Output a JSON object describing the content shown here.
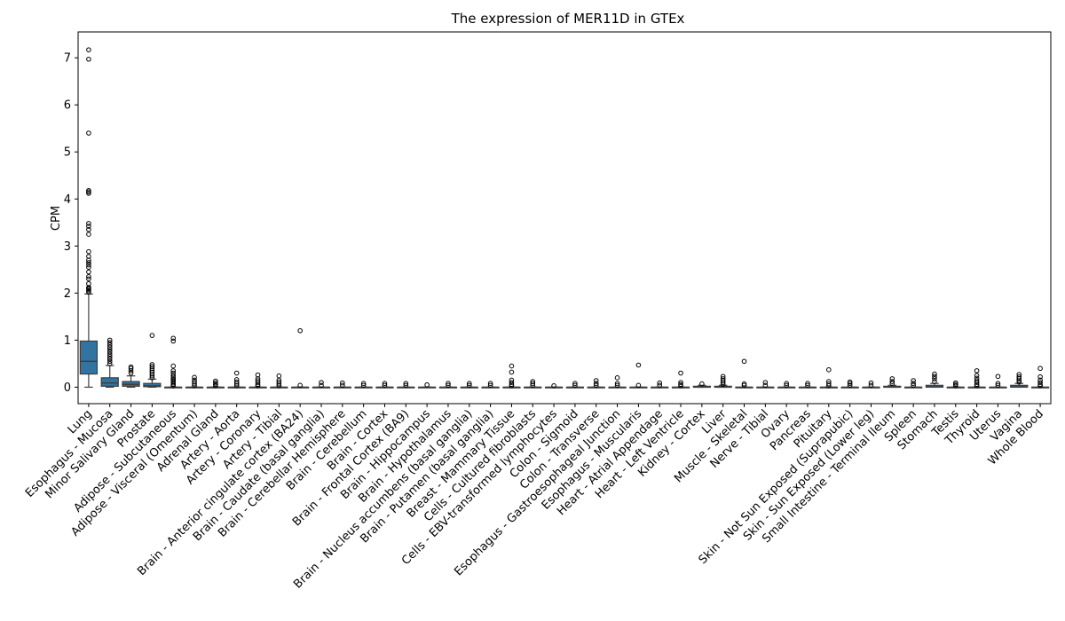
{
  "chart_data": {
    "type": "box",
    "title": "The expression of MER11D in GTEx",
    "xlabel": "",
    "ylabel": "CPM",
    "ylim": [
      -0.35,
      7.55
    ],
    "yticks": [
      0,
      1,
      2,
      3,
      4,
      5,
      6,
      7
    ],
    "grid": false,
    "box_color": "#3274a1",
    "categories": [
      "Lung",
      "Esophagus - Mucosa",
      "Minor Salivary Gland",
      "Prostate",
      "Adipose - Subcutaneous",
      "Adipose - Visceral (Omentum)",
      "Adrenal Gland",
      "Artery - Aorta",
      "Artery - Coronary",
      "Artery - Tibial",
      "Brain - Anterior cingulate cortex (BA24)",
      "Brain - Caudate (basal ganglia)",
      "Brain - Cerebellar Hemisphere",
      "Brain - Cerebellum",
      "Brain - Cortex",
      "Brain - Frontal Cortex (BA9)",
      "Brain - Hippocampus",
      "Brain - Hypothalamus",
      "Brain - Nucleus accumbens (basal ganglia)",
      "Brain - Putamen (basal ganglia)",
      "Breast - Mammary Tissue",
      "Cells - Cultured fibroblasts",
      "Cells - EBV-transformed lymphocytes",
      "Colon - Sigmoid",
      "Colon - Transverse",
      "Esophagus - Gastroesophageal Junction",
      "Esophagus - Muscularis",
      "Heart - Atrial Appendage",
      "Heart - Left Ventricle",
      "Kidney - Cortex",
      "Liver",
      "Muscle - Skeletal",
      "Nerve - Tibial",
      "Ovary",
      "Pancreas",
      "Pituitary",
      "Skin - Not Sun Exposed (Suprapubic)",
      "Skin - Sun Exposed (Lower leg)",
      "Small Intestine - Terminal Ileum",
      "Spleen",
      "Stomach",
      "Testis",
      "Thyroid",
      "Uterus",
      "Vagina",
      "Whole Blood"
    ],
    "boxes": [
      {
        "min": 0,
        "q1": 0.28,
        "median": 0.55,
        "q3": 0.98,
        "max": 1.98,
        "outliers": [
          2.02,
          2.05,
          2.08,
          2.1,
          2.12,
          2.2,
          2.3,
          2.35,
          2.45,
          2.55,
          2.6,
          2.65,
          2.7,
          2.78,
          2.88,
          3.25,
          3.35,
          3.42,
          3.48,
          4.12,
          4.15,
          4.18,
          5.4,
          6.97,
          7.17
        ]
      },
      {
        "min": 0,
        "q1": 0.02,
        "median": 0.09,
        "q3": 0.2,
        "max": 0.46,
        "outliers": [
          0.5,
          0.55,
          0.6,
          0.65,
          0.7,
          0.75,
          0.8,
          0.85,
          0.9,
          0.95,
          1.0
        ]
      },
      {
        "min": 0,
        "q1": 0.02,
        "median": 0.06,
        "q3": 0.12,
        "max": 0.24,
        "outliers": [
          0.3,
          0.35,
          0.4,
          0.43
        ]
      },
      {
        "min": 0,
        "q1": 0.01,
        "median": 0.03,
        "q3": 0.08,
        "max": 0.17,
        "outliers": [
          0.2,
          0.24,
          0.28,
          0.32,
          0.36,
          0.4,
          0.44,
          0.48,
          1.1
        ]
      },
      {
        "min": 0,
        "q1": 0,
        "median": 0,
        "q3": 0,
        "max": 0,
        "outliers": [
          0.03,
          0.06,
          0.09,
          0.12,
          0.15,
          0.18,
          0.21,
          0.25,
          0.3,
          0.35,
          0.45,
          0.98,
          1.04
        ]
      },
      {
        "min": 0,
        "q1": 0,
        "median": 0,
        "q3": 0,
        "max": 0,
        "outliers": [
          0.03,
          0.07,
          0.11,
          0.15,
          0.21
        ]
      },
      {
        "min": 0,
        "q1": 0,
        "median": 0,
        "q3": 0,
        "max": 0,
        "outliers": [
          0.03,
          0.06,
          0.09,
          0.13
        ]
      },
      {
        "min": 0,
        "q1": 0,
        "median": 0,
        "q3": 0,
        "max": 0,
        "outliers": [
          0.03,
          0.07,
          0.11,
          0.16,
          0.3
        ]
      },
      {
        "min": 0,
        "q1": 0,
        "median": 0,
        "q3": 0,
        "max": 0,
        "outliers": [
          0.03,
          0.06,
          0.1,
          0.14,
          0.18,
          0.26
        ]
      },
      {
        "min": 0,
        "q1": 0,
        "median": 0,
        "q3": 0,
        "max": 0,
        "outliers": [
          0.03,
          0.07,
          0.11,
          0.15,
          0.24
        ]
      },
      {
        "min": 0,
        "q1": 0,
        "median": 0,
        "q3": 0,
        "max": 0,
        "outliers": [
          0.04,
          1.2
        ]
      },
      {
        "min": 0,
        "q1": 0,
        "median": 0,
        "q3": 0,
        "max": 0,
        "outliers": [
          0.04,
          0.1
        ]
      },
      {
        "min": 0,
        "q1": 0,
        "median": 0,
        "q3": 0,
        "max": 0,
        "outliers": [
          0.04,
          0.09
        ]
      },
      {
        "min": 0,
        "q1": 0,
        "median": 0,
        "q3": 0,
        "max": 0,
        "outliers": [
          0.04,
          0.08
        ]
      },
      {
        "min": 0,
        "q1": 0,
        "median": 0,
        "q3": 0,
        "max": 0,
        "outliers": [
          0.04,
          0.08
        ]
      },
      {
        "min": 0,
        "q1": 0,
        "median": 0,
        "q3": 0,
        "max": 0,
        "outliers": [
          0.04,
          0.08
        ]
      },
      {
        "min": 0,
        "q1": 0,
        "median": 0,
        "q3": 0,
        "max": 0,
        "outliers": [
          0.05
        ]
      },
      {
        "min": 0,
        "q1": 0,
        "median": 0,
        "q3": 0,
        "max": 0,
        "outliers": [
          0.04,
          0.08
        ]
      },
      {
        "min": 0,
        "q1": 0,
        "median": 0,
        "q3": 0,
        "max": 0,
        "outliers": [
          0.04,
          0.08
        ]
      },
      {
        "min": 0,
        "q1": 0,
        "median": 0,
        "q3": 0,
        "max": 0,
        "outliers": [
          0.04,
          0.08
        ]
      },
      {
        "min": 0,
        "q1": 0,
        "median": 0,
        "q3": 0,
        "max": 0,
        "outliers": [
          0.03,
          0.06,
          0.1,
          0.15,
          0.32,
          0.45
        ]
      },
      {
        "min": 0,
        "q1": 0,
        "median": 0,
        "q3": 0,
        "max": 0,
        "outliers": [
          0.04,
          0.08,
          0.12
        ]
      },
      {
        "min": 0,
        "q1": 0,
        "median": 0,
        "q3": 0,
        "max": 0,
        "outliers": [
          0.03
        ]
      },
      {
        "min": 0,
        "q1": 0,
        "median": 0,
        "q3": 0,
        "max": 0,
        "outliers": [
          0.04,
          0.08
        ]
      },
      {
        "min": 0,
        "q1": 0,
        "median": 0,
        "q3": 0,
        "max": 0,
        "outliers": [
          0.04,
          0.08,
          0.14
        ]
      },
      {
        "min": 0,
        "q1": 0,
        "median": 0,
        "q3": 0,
        "max": 0,
        "outliers": [
          0.04,
          0.08,
          0.2
        ]
      },
      {
        "min": 0,
        "q1": 0,
        "median": 0,
        "q3": 0,
        "max": 0,
        "outliers": [
          0.04,
          0.47
        ]
      },
      {
        "min": 0,
        "q1": 0,
        "median": 0,
        "q3": 0,
        "max": 0,
        "outliers": [
          0.04,
          0.09
        ]
      },
      {
        "min": 0,
        "q1": 0,
        "median": 0,
        "q3": 0,
        "max": 0,
        "outliers": [
          0.03,
          0.06,
          0.1,
          0.3
        ]
      },
      {
        "min": 0,
        "q1": 0,
        "median": 0,
        "q3": 0.02,
        "max": 0.04,
        "outliers": [
          0.07
        ]
      },
      {
        "min": 0,
        "q1": 0,
        "median": 0,
        "q3": 0.02,
        "max": 0.04,
        "outliers": [
          0.06,
          0.1,
          0.14,
          0.18,
          0.23
        ]
      },
      {
        "min": 0,
        "q1": 0,
        "median": 0,
        "q3": 0,
        "max": 0,
        "outliers": [
          0.04,
          0.07,
          0.55
        ]
      },
      {
        "min": 0,
        "q1": 0,
        "median": 0,
        "q3": 0,
        "max": 0,
        "outliers": [
          0.04,
          0.1
        ]
      },
      {
        "min": 0,
        "q1": 0,
        "median": 0,
        "q3": 0,
        "max": 0,
        "outliers": [
          0.04,
          0.08
        ]
      },
      {
        "min": 0,
        "q1": 0,
        "median": 0,
        "q3": 0,
        "max": 0,
        "outliers": [
          0.04,
          0.08
        ]
      },
      {
        "min": 0,
        "q1": 0,
        "median": 0,
        "q3": 0,
        "max": 0,
        "outliers": [
          0.03,
          0.07,
          0.12,
          0.37
        ]
      },
      {
        "min": 0,
        "q1": 0,
        "median": 0,
        "q3": 0,
        "max": 0,
        "outliers": [
          0.04,
          0.08,
          0.11
        ]
      },
      {
        "min": 0,
        "q1": 0,
        "median": 0,
        "q3": 0,
        "max": 0,
        "outliers": [
          0.04,
          0.09
        ]
      },
      {
        "min": 0,
        "q1": 0,
        "median": 0,
        "q3": 0.02,
        "max": 0.04,
        "outliers": [
          0.08,
          0.12,
          0.18
        ]
      },
      {
        "min": 0,
        "q1": 0,
        "median": 0,
        "q3": 0,
        "max": 0,
        "outliers": [
          0.04,
          0.08,
          0.14
        ]
      },
      {
        "min": 0,
        "q1": 0,
        "median": 0.01,
        "q3": 0.04,
        "max": 0.08,
        "outliers": [
          0.12,
          0.18,
          0.23,
          0.28
        ]
      },
      {
        "min": 0,
        "q1": 0,
        "median": 0,
        "q3": 0,
        "max": 0,
        "outliers": [
          0.03,
          0.06,
          0.09
        ]
      },
      {
        "min": 0,
        "q1": 0,
        "median": 0,
        "q3": 0,
        "max": 0,
        "outliers": [
          0.03,
          0.06,
          0.1,
          0.14,
          0.19,
          0.25,
          0.35
        ]
      },
      {
        "min": 0,
        "q1": 0,
        "median": 0,
        "q3": 0,
        "max": 0,
        "outliers": [
          0.04,
          0.08,
          0.23
        ]
      },
      {
        "min": 0,
        "q1": 0,
        "median": 0.01,
        "q3": 0.04,
        "max": 0.08,
        "outliers": [
          0.11,
          0.14,
          0.18,
          0.22,
          0.27
        ]
      },
      {
        "min": 0,
        "q1": 0,
        "median": 0,
        "q3": 0,
        "max": 0,
        "outliers": [
          0.03,
          0.06,
          0.1,
          0.15,
          0.22,
          0.4
        ]
      }
    ]
  }
}
